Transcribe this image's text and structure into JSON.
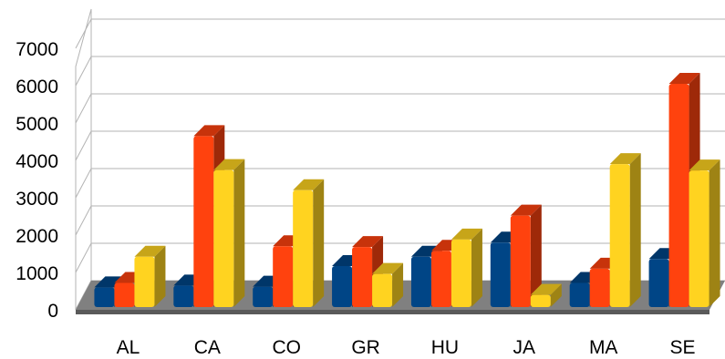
{
  "chart_data": {
    "type": "bar",
    "style": "3d-clustered-column",
    "categories": [
      "AL",
      "CA",
      "CO",
      "GR",
      "HU",
      "JA",
      "MA",
      "SE"
    ],
    "series": [
      {
        "color": "#004586",
        "values": [
          600,
          650,
          620,
          1170,
          1420,
          1800,
          720,
          1360
        ]
      },
      {
        "color": "#ff420e",
        "values": [
          720,
          4650,
          1700,
          1680,
          1580,
          2520,
          1100,
          6050
        ]
      },
      {
        "color": "#ffd320",
        "values": [
          1420,
          3740,
          3200,
          960,
          1880,
          400,
          3900,
          3730
        ]
      }
    ],
    "ylim": [
      0,
      7000
    ],
    "y_ticks": [
      "0",
      "1000",
      "2000",
      "3000",
      "4000",
      "5000",
      "6000",
      "7000"
    ],
    "grid": true,
    "legend": "none",
    "floor_color": "#808080"
  }
}
